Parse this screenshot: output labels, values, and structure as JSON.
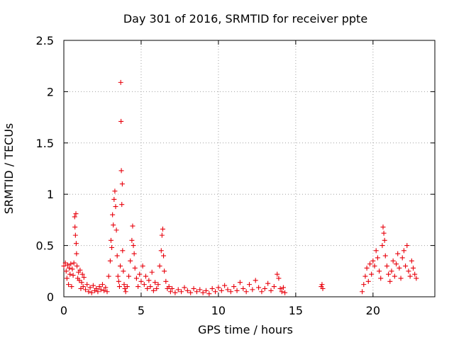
{
  "chart_data": {
    "type": "scatter",
    "title": "Day 301 of 2016, SRMTID for receiver ppte",
    "xlabel": "GPS time / hours",
    "ylabel": "SRMTID / TECUs",
    "xlim": [
      0,
      24
    ],
    "ylim": [
      0,
      2.5
    ],
    "xticks": [
      0,
      5,
      10,
      15,
      20
    ],
    "xtick_labels": [
      "0",
      "5",
      "10",
      "15",
      "20"
    ],
    "yticks": [
      0,
      0.5,
      1,
      1.5,
      2,
      2.5
    ],
    "ytick_labels": [
      "0",
      "0.5",
      "1",
      "1.5",
      "2",
      "2.5"
    ],
    "grid": true,
    "marker": "+",
    "color": "#e8000b",
    "series": [
      {
        "name": "SRMTID",
        "points": [
          [
            0.0,
            0.3
          ],
          [
            0.1,
            0.33
          ],
          [
            0.15,
            0.25
          ],
          [
            0.2,
            0.18
          ],
          [
            0.25,
            0.31
          ],
          [
            0.3,
            0.12
          ],
          [
            0.35,
            0.28
          ],
          [
            0.4,
            0.22
          ],
          [
            0.45,
            0.32
          ],
          [
            0.5,
            0.1
          ],
          [
            0.55,
            0.27
          ],
          [
            0.6,
            0.21
          ],
          [
            0.65,
            0.33
          ],
          [
            0.7,
            0.78
          ],
          [
            0.72,
            0.68
          ],
          [
            0.75,
            0.6
          ],
          [
            0.78,
            0.81
          ],
          [
            0.8,
            0.52
          ],
          [
            0.82,
            0.42
          ],
          [
            0.85,
            0.3
          ],
          [
            0.9,
            0.18
          ],
          [
            0.95,
            0.24
          ],
          [
            1.0,
            0.16
          ],
          [
            1.05,
            0.26
          ],
          [
            1.1,
            0.08
          ],
          [
            1.15,
            0.14
          ],
          [
            1.2,
            0.22
          ],
          [
            1.25,
            0.1
          ],
          [
            1.3,
            0.19
          ],
          [
            1.4,
            0.07
          ],
          [
            1.5,
            0.12
          ],
          [
            1.6,
            0.05
          ],
          [
            1.7,
            0.09
          ],
          [
            1.8,
            0.04
          ],
          [
            1.9,
            0.11
          ],
          [
            2.0,
            0.06
          ],
          [
            2.1,
            0.08
          ],
          [
            2.2,
            0.05
          ],
          [
            2.3,
            0.1
          ],
          [
            2.4,
            0.07
          ],
          [
            2.5,
            0.12
          ],
          [
            2.6,
            0.06
          ],
          [
            2.7,
            0.09
          ],
          [
            2.8,
            0.05
          ],
          [
            2.9,
            0.2
          ],
          [
            3.0,
            0.35
          ],
          [
            3.05,
            0.55
          ],
          [
            3.1,
            0.48
          ],
          [
            3.15,
            0.8
          ],
          [
            3.2,
            0.7
          ],
          [
            3.25,
            0.95
          ],
          [
            3.3,
            1.03
          ],
          [
            3.35,
            0.88
          ],
          [
            3.4,
            0.65
          ],
          [
            3.45,
            0.4
          ],
          [
            3.5,
            0.2
          ],
          [
            3.55,
            0.15
          ],
          [
            3.6,
            0.1
          ],
          [
            3.65,
            0.3
          ],
          [
            3.68,
            2.09
          ],
          [
            3.7,
            1.71
          ],
          [
            3.72,
            1.23
          ],
          [
            3.75,
            0.9
          ],
          [
            3.78,
            1.1
          ],
          [
            3.8,
            0.45
          ],
          [
            3.85,
            0.25
          ],
          [
            3.9,
            0.12
          ],
          [
            3.95,
            0.08
          ],
          [
            4.0,
            0.05
          ],
          [
            4.1,
            0.1
          ],
          [
            4.2,
            0.2
          ],
          [
            4.3,
            0.35
          ],
          [
            4.4,
            0.55
          ],
          [
            4.45,
            0.69
          ],
          [
            4.5,
            0.5
          ],
          [
            4.55,
            0.42
          ],
          [
            4.6,
            0.28
          ],
          [
            4.7,
            0.18
          ],
          [
            4.8,
            0.1
          ],
          [
            4.9,
            0.22
          ],
          [
            5.0,
            0.15
          ],
          [
            5.1,
            0.3
          ],
          [
            5.2,
            0.12
          ],
          [
            5.3,
            0.2
          ],
          [
            5.4,
            0.08
          ],
          [
            5.5,
            0.16
          ],
          [
            5.6,
            0.1
          ],
          [
            5.7,
            0.24
          ],
          [
            5.8,
            0.06
          ],
          [
            5.9,
            0.14
          ],
          [
            6.0,
            0.08
          ],
          [
            6.1,
            0.12
          ],
          [
            6.2,
            0.3
          ],
          [
            6.3,
            0.45
          ],
          [
            6.35,
            0.6
          ],
          [
            6.4,
            0.66
          ],
          [
            6.45,
            0.4
          ],
          [
            6.5,
            0.25
          ],
          [
            6.6,
            0.15
          ],
          [
            6.7,
            0.08
          ],
          [
            6.8,
            0.1
          ],
          [
            6.9,
            0.05
          ],
          [
            7.0,
            0.08
          ],
          [
            7.2,
            0.04
          ],
          [
            7.4,
            0.07
          ],
          [
            7.6,
            0.05
          ],
          [
            7.8,
            0.09
          ],
          [
            8.0,
            0.06
          ],
          [
            8.2,
            0.04
          ],
          [
            8.4,
            0.08
          ],
          [
            8.6,
            0.05
          ],
          [
            8.8,
            0.07
          ],
          [
            9.0,
            0.04
          ],
          [
            9.2,
            0.06
          ],
          [
            9.4,
            0.03
          ],
          [
            9.6,
            0.08
          ],
          [
            9.8,
            0.05
          ],
          [
            10.0,
            0.09
          ],
          [
            10.2,
            0.06
          ],
          [
            10.4,
            0.11
          ],
          [
            10.6,
            0.07
          ],
          [
            10.8,
            0.05
          ],
          [
            11.0,
            0.1
          ],
          [
            11.2,
            0.06
          ],
          [
            11.4,
            0.14
          ],
          [
            11.6,
            0.08
          ],
          [
            11.8,
            0.05
          ],
          [
            12.0,
            0.12
          ],
          [
            12.2,
            0.07
          ],
          [
            12.4,
            0.16
          ],
          [
            12.6,
            0.09
          ],
          [
            12.8,
            0.05
          ],
          [
            13.0,
            0.08
          ],
          [
            13.2,
            0.13
          ],
          [
            13.4,
            0.06
          ],
          [
            13.6,
            0.1
          ],
          [
            13.8,
            0.22
          ],
          [
            13.9,
            0.18
          ],
          [
            14.0,
            0.08
          ],
          [
            14.1,
            0.05
          ],
          [
            14.2,
            0.09
          ],
          [
            14.3,
            0.04
          ],
          [
            16.65,
            0.1
          ],
          [
            16.7,
            0.12
          ],
          [
            16.75,
            0.08
          ],
          [
            19.3,
            0.05
          ],
          [
            19.4,
            0.12
          ],
          [
            19.5,
            0.2
          ],
          [
            19.6,
            0.28
          ],
          [
            19.7,
            0.15
          ],
          [
            19.8,
            0.32
          ],
          [
            19.9,
            0.22
          ],
          [
            20.0,
            0.35
          ],
          [
            20.1,
            0.3
          ],
          [
            20.2,
            0.45
          ],
          [
            20.3,
            0.38
          ],
          [
            20.4,
            0.25
          ],
          [
            20.5,
            0.18
          ],
          [
            20.6,
            0.5
          ],
          [
            20.65,
            0.68
          ],
          [
            20.7,
            0.62
          ],
          [
            20.75,
            0.55
          ],
          [
            20.8,
            0.4
          ],
          [
            20.9,
            0.3
          ],
          [
            21.0,
            0.22
          ],
          [
            21.1,
            0.15
          ],
          [
            21.2,
            0.25
          ],
          [
            21.3,
            0.35
          ],
          [
            21.4,
            0.2
          ],
          [
            21.5,
            0.32
          ],
          [
            21.6,
            0.42
          ],
          [
            21.7,
            0.28
          ],
          [
            21.8,
            0.18
          ],
          [
            21.9,
            0.38
          ],
          [
            22.0,
            0.45
          ],
          [
            22.1,
            0.3
          ],
          [
            22.2,
            0.5
          ],
          [
            22.3,
            0.25
          ],
          [
            22.4,
            0.2
          ],
          [
            22.5,
            0.35
          ],
          [
            22.6,
            0.28
          ],
          [
            22.7,
            0.22
          ],
          [
            22.8,
            0.18
          ]
        ]
      }
    ]
  }
}
